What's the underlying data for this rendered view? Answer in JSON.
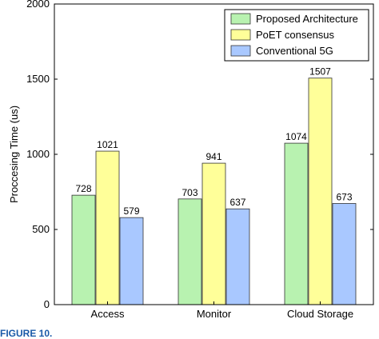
{
  "chart_data": {
    "type": "bar",
    "categories": [
      "Access",
      "Monitor",
      "Cloud Storage"
    ],
    "series": [
      {
        "name": "Proposed Architecture",
        "values": [
          728,
          703,
          1074
        ],
        "color": "#b8f2b0"
      },
      {
        "name": "PoET consensus",
        "values": [
          1021,
          941,
          1507
        ],
        "color": "#ffff99"
      },
      {
        "name": "Conventional 5G",
        "values": [
          579,
          637,
          673
        ],
        "color": "#a9c8ff"
      }
    ],
    "data_labels": [
      [
        "728",
        "1021",
        "579"
      ],
      [
        "703",
        "941",
        "637"
      ],
      [
        "1074",
        "1507",
        "673"
      ]
    ],
    "ylabel": "Proccesing Time (us)",
    "xlabel": "",
    "ylim": [
      0,
      2000
    ],
    "yticks": [
      "0",
      "500",
      "1000",
      "1500",
      "2000"
    ],
    "grid": false,
    "legend_position": "top-right"
  },
  "caption": "FIGURE 10."
}
